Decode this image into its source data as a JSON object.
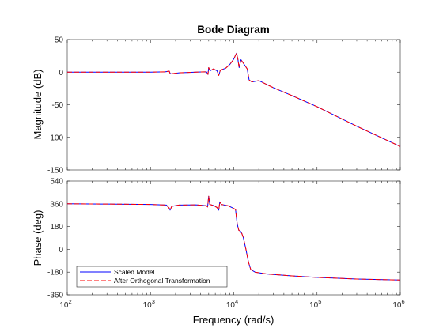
{
  "chart_data": {
    "type": "line",
    "title": "Bode Diagram",
    "xlabel": "Frequency  (rad/s)",
    "x_scale": "log",
    "xlim": [
      100,
      1000000
    ],
    "x_ticks": [
      100,
      1000,
      10000,
      100000,
      1000000
    ],
    "grid": false,
    "legend_placement": "bottom-left",
    "legend_panel": "phase",
    "colors": {
      "scaled_model": "#0000ff",
      "after_orthogonal": "#ff0000"
    },
    "panels": [
      {
        "id": "magnitude",
        "ylabel": "Magnitude (dB)",
        "ylim": [
          -150,
          50
        ],
        "y_ticks": [
          50,
          0,
          -50,
          -100,
          -150
        ],
        "series": [
          {
            "name": "Scaled Model",
            "style": "solid",
            "points": [
              [
                100,
                0
              ],
              [
                300,
                0
              ],
              [
                1000,
                0
              ],
              [
                1500,
                0.5
              ],
              [
                1680,
                1.5
              ],
              [
                1720,
                -2
              ],
              [
                1780,
                -2.5
              ],
              [
                2200,
                -1
              ],
              [
                3500,
                0
              ],
              [
                4700,
                0.5
              ],
              [
                4900,
                -3.5
              ],
              [
                5000,
                7
              ],
              [
                5200,
                2
              ],
              [
                5700,
                5
              ],
              [
                6300,
                2
              ],
              [
                6600,
                -5
              ],
              [
                6900,
                3
              ],
              [
                8000,
                6
              ],
              [
                9000,
                12
              ],
              [
                10000,
                20
              ],
              [
                10500,
                26
              ],
              [
                10800,
                29
              ],
              [
                11200,
                20
              ],
              [
                11600,
                7
              ],
              [
                12200,
                19
              ],
              [
                13000,
                14
              ],
              [
                14500,
                5
              ],
              [
                15300,
                -12
              ],
              [
                16500,
                -15
              ],
              [
                20000,
                -13
              ],
              [
                30000,
                -24
              ],
              [
                50000,
                -36
              ],
              [
                100000,
                -53
              ],
              [
                300000,
                -83
              ],
              [
                1000000,
                -114
              ]
            ]
          },
          {
            "name": "After Orthogonal Transformation",
            "style": "dashed",
            "points": [
              [
                100,
                0
              ],
              [
                300,
                0
              ],
              [
                1000,
                0
              ],
              [
                1500,
                0.5
              ],
              [
                1680,
                1.5
              ],
              [
                1720,
                -2
              ],
              [
                1780,
                -2.5
              ],
              [
                2200,
                -1
              ],
              [
                3500,
                0
              ],
              [
                4700,
                0.5
              ],
              [
                4900,
                -3.5
              ],
              [
                5000,
                7
              ],
              [
                5200,
                2
              ],
              [
                5700,
                5
              ],
              [
                6300,
                2
              ],
              [
                6600,
                -5
              ],
              [
                6900,
                3
              ],
              [
                8000,
                6
              ],
              [
                9000,
                12
              ],
              [
                10000,
                20
              ],
              [
                10500,
                26
              ],
              [
                10800,
                29
              ],
              [
                11200,
                20
              ],
              [
                11600,
                7
              ],
              [
                12200,
                19
              ],
              [
                13000,
                14
              ],
              [
                14500,
                5
              ],
              [
                15300,
                -12
              ],
              [
                16500,
                -15
              ],
              [
                20000,
                -13
              ],
              [
                30000,
                -24
              ],
              [
                50000,
                -36
              ],
              [
                100000,
                -53
              ],
              [
                300000,
                -83
              ],
              [
                1000000,
                -114
              ]
            ]
          }
        ]
      },
      {
        "id": "phase",
        "ylabel": "Phase (deg)",
        "ylim": [
          -360,
          540
        ],
        "y_ticks": [
          540,
          360,
          180,
          0,
          -180,
          -360
        ],
        "series": [
          {
            "name": "Scaled Model",
            "style": "solid",
            "points": [
              [
                100,
                360
              ],
              [
                300,
                358
              ],
              [
                1000,
                355
              ],
              [
                1550,
                350
              ],
              [
                1680,
                325
              ],
              [
                1720,
                310
              ],
              [
                1800,
                340
              ],
              [
                2200,
                350
              ],
              [
                3500,
                352
              ],
              [
                4700,
                345
              ],
              [
                4850,
                335
              ],
              [
                5000,
                420
              ],
              [
                5150,
                355
              ],
              [
                5800,
                345
              ],
              [
                6300,
                330
              ],
              [
                6600,
                310
              ],
              [
                6800,
                375
              ],
              [
                7100,
                355
              ],
              [
                8500,
                345
              ],
              [
                9500,
                330
              ],
              [
                10500,
                315
              ],
              [
                11000,
                200
              ],
              [
                11500,
                150
              ],
              [
                12000,
                145
              ],
              [
                12500,
                125
              ],
              [
                13000,
                95
              ],
              [
                14000,
                0
              ],
              [
                15000,
                -100
              ],
              [
                16000,
                -160
              ],
              [
                18000,
                -180
              ],
              [
                25000,
                -195
              ],
              [
                50000,
                -210
              ],
              [
                100000,
                -222
              ],
              [
                300000,
                -235
              ],
              [
                1000000,
                -243
              ]
            ]
          },
          {
            "name": "After Orthogonal Transformation",
            "style": "dashed",
            "points": [
              [
                100,
                360
              ],
              [
                300,
                358
              ],
              [
                1000,
                355
              ],
              [
                1550,
                350
              ],
              [
                1680,
                325
              ],
              [
                1720,
                310
              ],
              [
                1800,
                340
              ],
              [
                2200,
                350
              ],
              [
                3500,
                352
              ],
              [
                4700,
                345
              ],
              [
                4850,
                335
              ],
              [
                5000,
                420
              ],
              [
                5150,
                355
              ],
              [
                5800,
                345
              ],
              [
                6300,
                330
              ],
              [
                6600,
                310
              ],
              [
                6800,
                375
              ],
              [
                7100,
                355
              ],
              [
                8500,
                345
              ],
              [
                9500,
                330
              ],
              [
                10500,
                315
              ],
              [
                11000,
                200
              ],
              [
                11500,
                150
              ],
              [
                12000,
                145
              ],
              [
                12500,
                125
              ],
              [
                13000,
                95
              ],
              [
                14000,
                0
              ],
              [
                15000,
                -100
              ],
              [
                16000,
                -160
              ],
              [
                18000,
                -180
              ],
              [
                25000,
                -195
              ],
              [
                50000,
                -210
              ],
              [
                100000,
                -222
              ],
              [
                300000,
                -235
              ],
              [
                1000000,
                -243
              ]
            ]
          }
        ]
      }
    ]
  }
}
